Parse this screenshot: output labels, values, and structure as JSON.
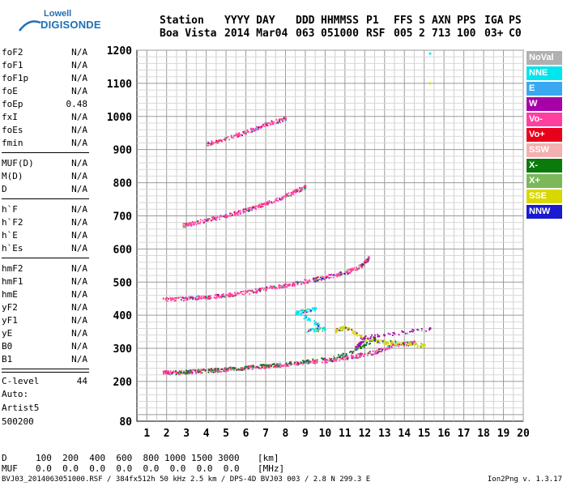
{
  "logo": {
    "line1": "Lowell",
    "line2": "DIGISONDE"
  },
  "header": {
    "columns": [
      {
        "label": "Station",
        "value": "Boa Vista"
      },
      {
        "label": "YYYY DAY",
        "value": "2014 Mar04"
      },
      {
        "label": "DDD",
        "value": "063"
      },
      {
        "label": "HHMMSS",
        "value": "051000"
      },
      {
        "label": "P1",
        "value": "RSF"
      },
      {
        "label": "FFS",
        "value": "005"
      },
      {
        "label": "S",
        "value": "2"
      },
      {
        "label": "AXN",
        "value": "713"
      },
      {
        "label": "PPS",
        "value": "100"
      },
      {
        "label": "IGA",
        "value": "03+"
      },
      {
        "label": "PS",
        "value": "C0"
      }
    ]
  },
  "params": {
    "group1": [
      {
        "name": "foF2",
        "value": "N/A"
      },
      {
        "name": "foF1",
        "value": "N/A"
      },
      {
        "name": "foF1p",
        "value": "N/A"
      },
      {
        "name": "foE",
        "value": "N/A"
      },
      {
        "name": "foEp",
        "value": "0.48"
      },
      {
        "name": "fxI",
        "value": "N/A"
      },
      {
        "name": "foEs",
        "value": "N/A"
      },
      {
        "name": "fmin",
        "value": "N/A"
      }
    ],
    "group2": [
      {
        "name": "MUF(D)",
        "value": "N/A"
      },
      {
        "name": "M(D)",
        "value": "N/A"
      },
      {
        "name": "D",
        "value": "N/A"
      }
    ],
    "group3": [
      {
        "name": "h`F",
        "value": "N/A"
      },
      {
        "name": "h`F2",
        "value": "N/A"
      },
      {
        "name": "h`E",
        "value": "N/A"
      },
      {
        "name": "h`Es",
        "value": "N/A"
      }
    ],
    "group4": [
      {
        "name": "hmF2",
        "value": "N/A"
      },
      {
        "name": "hmF1",
        "value": "N/A"
      },
      {
        "name": "hmE",
        "value": "N/A"
      },
      {
        "name": "yF2",
        "value": "N/A"
      },
      {
        "name": "yF1",
        "value": "N/A"
      },
      {
        "name": "yE",
        "value": "N/A"
      },
      {
        "name": "B0",
        "value": "N/A"
      },
      {
        "name": "B1",
        "value": "N/A"
      }
    ],
    "clevel": {
      "name": "C-level",
      "value": "44"
    }
  },
  "auto": {
    "line1": "Auto:",
    "line2": "Artist5",
    "line3": "500200"
  },
  "footer": {
    "d_label": "D",
    "d_values": "100  200  400  600  800 1000 1500 3000",
    "d_unit": "[km]",
    "muf_label": "MUF",
    "muf_values": "0.0  0.0  0.0  0.0  0.0  0.0  0.0  0.0",
    "muf_unit": "[MHz]"
  },
  "status": {
    "left": "BVJ03_2014063051000.RSF / 384fx512h 50 kHz 2.5 km / DPS-4D BVJ03 003 / 2.8 N 299.3 E",
    "right": "Ion2Png v. 1.3.17"
  },
  "legend": [
    {
      "label": "NoVal",
      "color": "#b0b0b0"
    },
    {
      "label": "NNE",
      "color": "#00e5ee"
    },
    {
      "label": "E",
      "color": "#3aa8f0"
    },
    {
      "label": "W",
      "color": "#a800a8"
    },
    {
      "label": "Vo-",
      "color": "#ff3fa0"
    },
    {
      "label": "Vo+",
      "color": "#e8001c"
    },
    {
      "label": "SSW",
      "color": "#f4b0b0"
    },
    {
      "label": "X-",
      "color": "#0a7a0a"
    },
    {
      "label": "X+",
      "color": "#7ab85a"
    },
    {
      "label": "SSE",
      "color": "#d8d800"
    },
    {
      "label": "NNW",
      "color": "#1a1ad0"
    }
  ],
  "chart_data": {
    "type": "scatter",
    "title": "",
    "xlabel": "",
    "ylabel": "",
    "xlim": [
      0.5,
      20
    ],
    "ylim": [
      80,
      1200
    ],
    "x_ticks": [
      1,
      2,
      3,
      4,
      5,
      6,
      7,
      8,
      9,
      10,
      11,
      12,
      13,
      14,
      15,
      16,
      17,
      18,
      19,
      20
    ],
    "y_ticks": [
      80,
      200,
      300,
      400,
      500,
      600,
      700,
      800,
      900,
      1000,
      1100,
      1200
    ],
    "grid": true,
    "legend_position": "right",
    "series": [
      {
        "name": "Vo-",
        "points": [
          [
            1.8,
            228
          ],
          [
            2.5,
            229
          ],
          [
            3.5,
            232
          ],
          [
            4.5,
            236
          ],
          [
            5.5,
            240
          ],
          [
            6.5,
            246
          ],
          [
            7.5,
            250
          ],
          [
            8.5,
            256
          ],
          [
            9.5,
            262
          ],
          [
            10.5,
            268
          ],
          [
            11.5,
            278
          ],
          [
            12.5,
            290
          ],
          [
            13.5,
            310
          ],
          [
            14.5,
            320
          ]
        ]
      },
      {
        "name": "Vo-",
        "points": [
          [
            1.8,
            450
          ],
          [
            3.0,
            452
          ],
          [
            4.0,
            456
          ],
          [
            5.0,
            462
          ],
          [
            6.0,
            470
          ],
          [
            7.0,
            482
          ],
          [
            8.0,
            492
          ],
          [
            9.0,
            504
          ],
          [
            10.0,
            516
          ],
          [
            11.0,
            530
          ],
          [
            11.8,
            550
          ],
          [
            12.2,
            575
          ]
        ]
      },
      {
        "name": "Vo-",
        "points": [
          [
            2.8,
            672
          ],
          [
            3.5,
            682
          ],
          [
            4.5,
            695
          ],
          [
            5.5,
            710
          ],
          [
            6.5,
            728
          ],
          [
            7.5,
            750
          ],
          [
            8.3,
            770
          ],
          [
            9.0,
            790
          ]
        ]
      },
      {
        "name": "Vo-",
        "points": [
          [
            4.0,
            918
          ],
          [
            5.0,
            935
          ],
          [
            6.0,
            955
          ],
          [
            7.0,
            978
          ],
          [
            8.0,
            995
          ]
        ]
      },
      {
        "name": "SSE",
        "points": [
          [
            10.5,
            355
          ],
          [
            11.0,
            365
          ],
          [
            12.0,
            330
          ],
          [
            13.0,
            320
          ],
          [
            14.0,
            315
          ],
          [
            15.0,
            310
          ],
          [
            15.3,
            1100
          ]
        ]
      },
      {
        "name": "NNE",
        "points": [
          [
            9.0,
            355
          ],
          [
            10.0,
            360
          ],
          [
            8.5,
            410
          ],
          [
            9.5,
            420
          ],
          [
            15.3,
            1190
          ]
        ]
      },
      {
        "name": "X-",
        "points": [
          [
            2.5,
            228
          ],
          [
            5.0,
            238
          ],
          [
            8.0,
            254
          ],
          [
            11.0,
            282
          ],
          [
            12.5,
            330
          ]
        ]
      },
      {
        "name": "W",
        "points": [
          [
            11.5,
            300
          ],
          [
            12.0,
            335
          ],
          [
            15.3,
            360
          ]
        ]
      }
    ]
  }
}
